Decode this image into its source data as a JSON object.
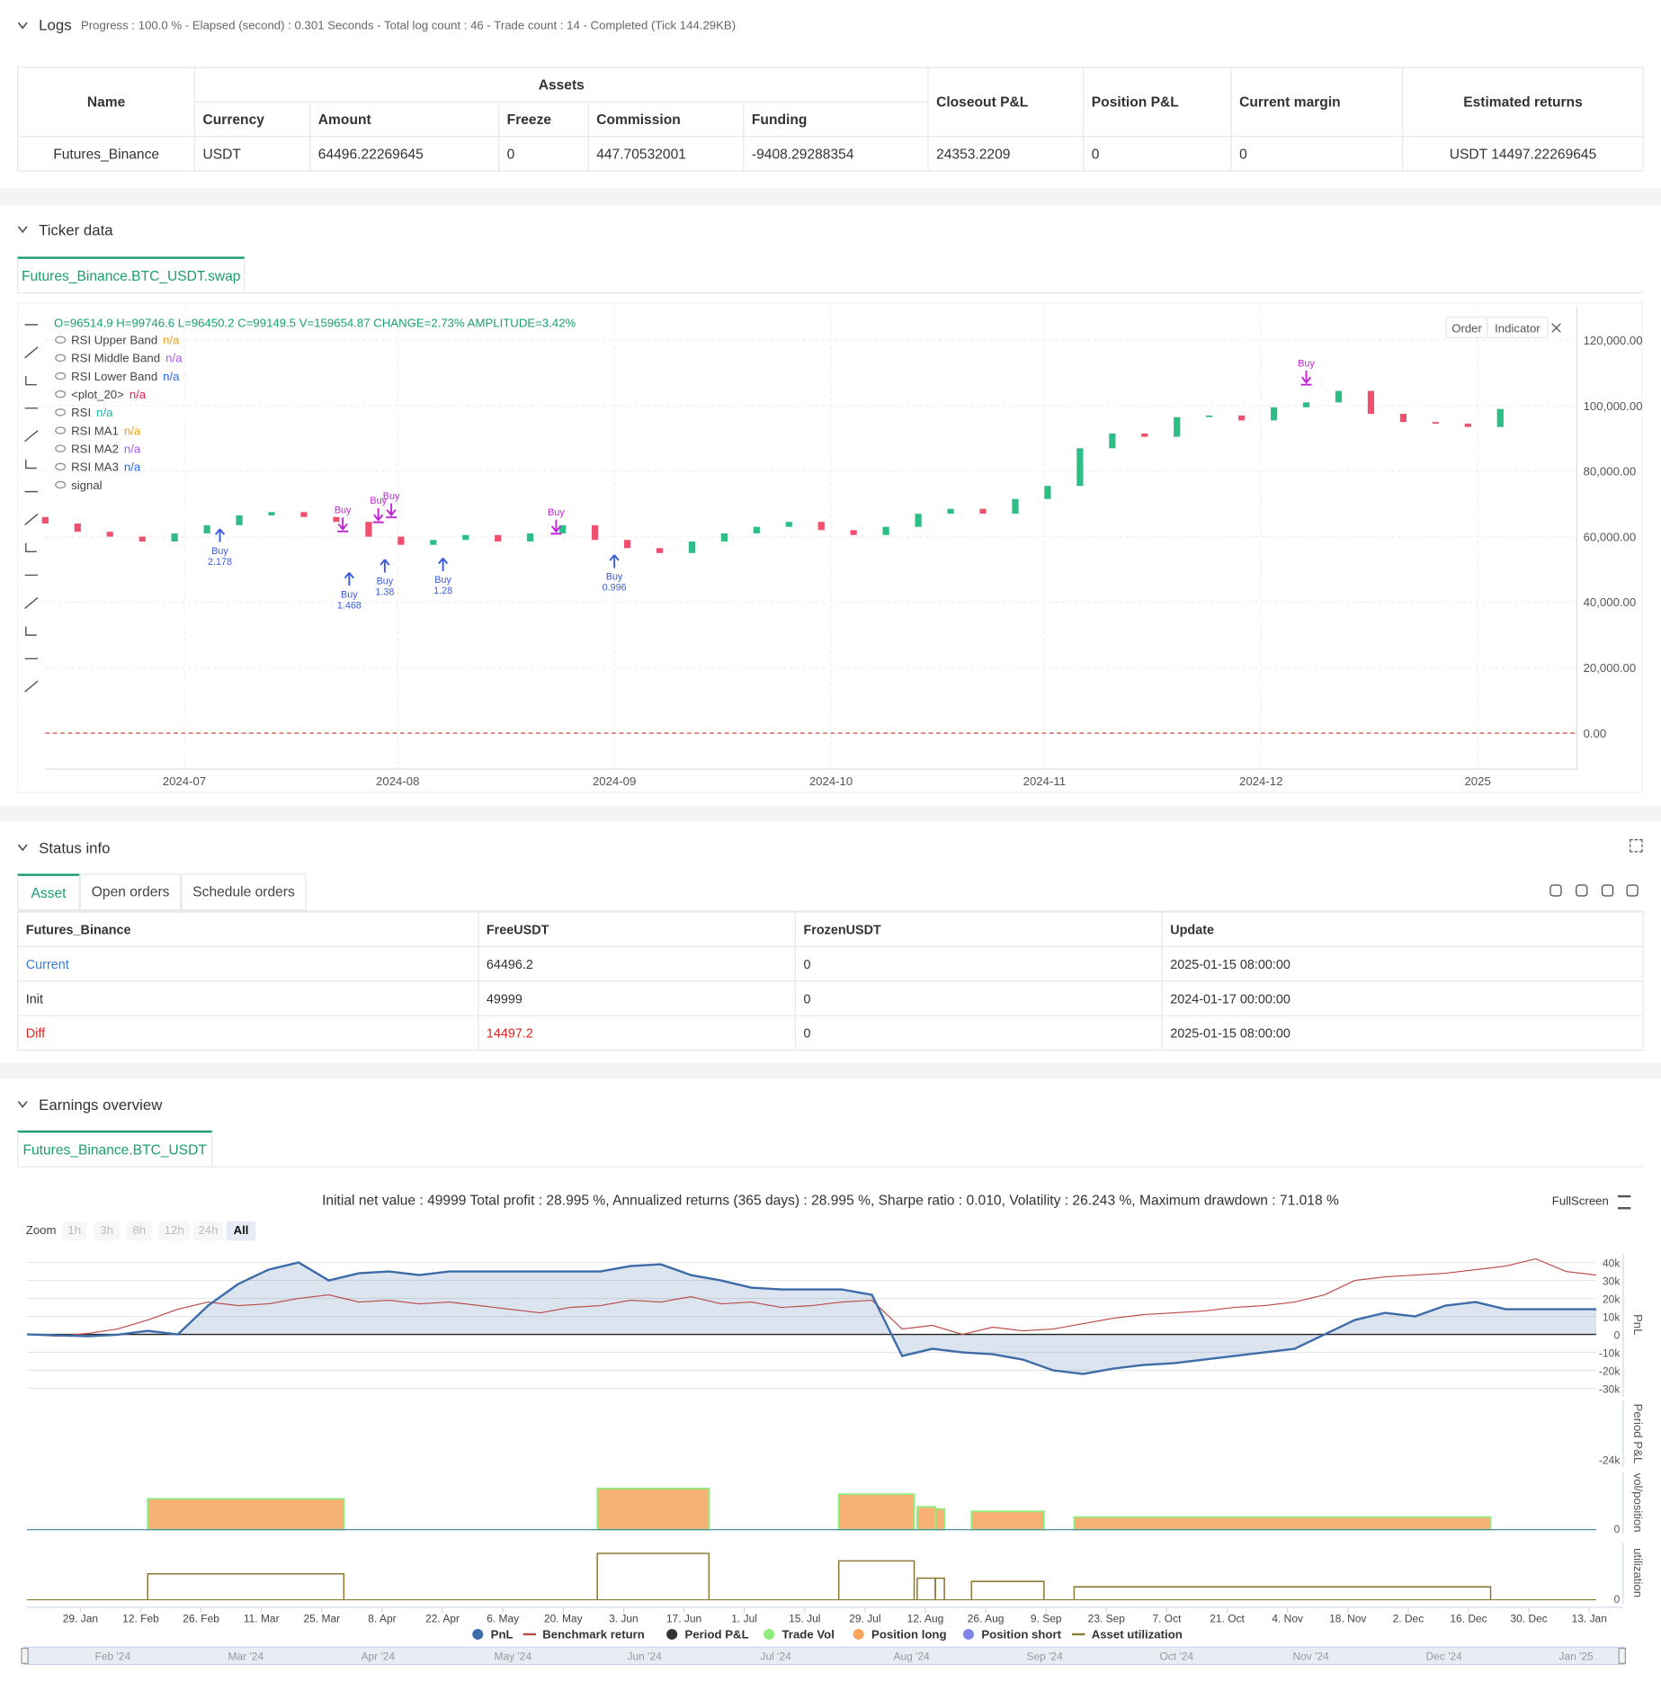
{
  "logs": {
    "title": "Logs",
    "summary": "Progress : 100.0 % - Elapsed (second) : 0.301 Seconds - Total log count : 46 - Trade count : 14 - Completed (Tick 144.29KB)",
    "table": {
      "name_header": "Name",
      "group_header": "Assets",
      "group_columns": [
        "Currency",
        "Amount",
        "Freeze",
        "Commission",
        "Funding"
      ],
      "headers": [
        "Closeout P&L",
        "Position P&L",
        "Current margin",
        "Estimated returns"
      ],
      "rows": [
        [
          "Futures_Binance",
          "USDT",
          "64496.22269645",
          "0",
          "447.70532001",
          "-9408.29288354",
          "24353.2209",
          "0",
          "0",
          "USDT 14497.22269645"
        ]
      ]
    }
  },
  "ticker": {
    "title": "Ticker data",
    "tab": "Futures_Binance.BTC_USDT.swap",
    "ohlc": "O=96514.9 H=99746.6 L=96450.2 C=99149.5 V=159654.87 CHANGE=2.73% AMPLITUDE=3.42%",
    "legend": [
      {
        "name": "RSI Upper Band",
        "value": "n/a",
        "color": "#f59e0b"
      },
      {
        "name": "RSI Middle Band",
        "value": "n/a",
        "color": "#a855f7"
      },
      {
        "name": "RSI Lower Band",
        "value": "n/a",
        "color": "#2563eb"
      },
      {
        "name": "<plot_20>",
        "value": "n/a",
        "color": "#e11d48"
      },
      {
        "name": "RSI",
        "value": "n/a",
        "color": "#14b8a6"
      },
      {
        "name": "RSI MA1",
        "value": "n/a",
        "color": "#f59e0b"
      },
      {
        "name": "RSI MA2",
        "value": "n/a",
        "color": "#a855f7"
      },
      {
        "name": "RSI MA3",
        "value": "n/a",
        "color": "#2563eb"
      },
      {
        "name": "signal"
      }
    ],
    "buttons": [
      "Order",
      "Indicator"
    ]
  },
  "status": {
    "title": "Status info",
    "tabs": [
      "Asset",
      "Open orders",
      "Schedule orders"
    ],
    "headers": [
      "Futures_Binance",
      "FreeUSDT",
      "FrozenUSDT",
      "Update"
    ],
    "rows": [
      [
        "Current",
        "64496.2",
        "0",
        "2025-01-15 08:00:00"
      ],
      [
        "Init",
        "49999",
        "0",
        "2024-01-17 00:00:00"
      ],
      [
        "Diff",
        "14497.2",
        "0",
        "2025-01-15 08:00:00"
      ]
    ]
  },
  "earnings": {
    "title": "Earnings overview",
    "tab": "Futures_Binance.BTC_USDT",
    "summary": "Initial net value : 49999 Total profit : 28.995 %, Annualized returns (365 days) : 28.995 %, Sharpe ratio : 0.010, Volatility : 26.243 %, Maximum drawdown : 71.018 %",
    "fullscreen": "FullScreen",
    "zoom_label": "Zoom",
    "zoom_buttons": [
      "1h",
      "3h",
      "8h",
      "12h",
      "24h",
      "All"
    ],
    "axis_titles": [
      "PnL",
      "Period P&L",
      "vol/position",
      "utilization"
    ],
    "navigator_labels": [
      "Feb '24",
      "Mar '24",
      "Apr '24",
      "May '24",
      "Jun '24",
      "Jul '24",
      "Aug '24",
      "Sep '24",
      "Oct '24",
      "Nov '24",
      "Dec '24",
      "Jan '25"
    ]
  },
  "chart_data": [
    {
      "type": "candlestick",
      "open": [
        66000,
        64000,
        61500,
        60000,
        58500,
        61000,
        63500,
        66500,
        67500,
        66000,
        64500,
        60000,
        57500,
        59000,
        60500,
        58500,
        61000,
        63500,
        59000,
        56500,
        55000,
        58500,
        61000,
        63000,
        64500,
        62000,
        60500,
        63000,
        67000,
        68500,
        67000,
        71500,
        75500,
        87000,
        91500,
        90500,
        96500,
        97000,
        95500,
        99500,
        101000,
        104500,
        97500,
        95000,
        94500,
        93500
      ],
      "close": [
        64000,
        61500,
        60000,
        58500,
        61000,
        63500,
        66500,
        67500,
        66000,
        64500,
        60000,
        57500,
        59000,
        60500,
        58500,
        61000,
        63500,
        59000,
        56500,
        55000,
        58500,
        61000,
        63000,
        64500,
        62000,
        60500,
        63000,
        67000,
        68500,
        67000,
        71500,
        75500,
        87000,
        91500,
        90500,
        96500,
        97000,
        95500,
        99500,
        101000,
        104500,
        97500,
        95000,
        94500,
        93500,
        99000
      ],
      "up_color": "#2dbd85",
      "down_color": "#f0506e",
      "xlim": [
        -0.3,
        47.3
      ],
      "xticks": [
        {
          "value": 4.3,
          "label": "2024-07"
        },
        {
          "value": 10.9,
          "label": "2024-08"
        },
        {
          "value": 17.6,
          "label": "2024-09"
        },
        {
          "value": 24.3,
          "label": "2024-10"
        },
        {
          "value": 30.9,
          "label": "2024-11"
        },
        {
          "value": 37.6,
          "label": "2024-12"
        },
        {
          "value": 44.3,
          "label": "2025"
        }
      ],
      "ylim": [
        -11000,
        130000
      ],
      "yticks": [
        {
          "value": 0,
          "label": "0.00"
        },
        {
          "value": 20000,
          "label": "20,000.00"
        },
        {
          "value": 40000,
          "label": "40,000.00"
        },
        {
          "value": 60000,
          "label": "60,000.00"
        },
        {
          "value": 80000,
          "label": "80,000.00"
        },
        {
          "value": 100000,
          "label": "100,000.00"
        },
        {
          "value": 120000,
          "label": "120,000.00"
        }
      ],
      "grid": true,
      "annotations": [
        {
          "text": "Buy",
          "detail": "2.178",
          "x": 5.4,
          "y": 62300,
          "side": "below",
          "color": "#3b5bdb"
        },
        {
          "text": "Buy",
          "detail": "1.468",
          "x": 9.4,
          "y": 49000,
          "side": "below",
          "color": "#3b5bdb"
        },
        {
          "text": "Buy",
          "detail": "1.38",
          "x": 10.5,
          "y": 53000,
          "side": "below",
          "color": "#3b5bdb"
        },
        {
          "text": "Buy",
          "detail": "1.28",
          "x": 12.3,
          "y": 53400,
          "side": "below",
          "color": "#3b5bdb"
        },
        {
          "text": "Buy",
          "detail": "0.996",
          "x": 17.6,
          "y": 54400,
          "side": "below",
          "color": "#3b5bdb"
        },
        {
          "text": "Buy",
          "x": 9.2,
          "y": 67200,
          "side": "above",
          "color": "#c026d3"
        },
        {
          "text": "Buy",
          "x": 10.3,
          "y": 70000,
          "side": "above",
          "color": "#c026d3"
        },
        {
          "text": "Buy",
          "x": 10.7,
          "y": 71500,
          "side": "above",
          "color": "#c026d3"
        },
        {
          "text": "Buy",
          "x": 15.8,
          "y": 66500,
          "side": "above",
          "color": "#c026d3"
        },
        {
          "text": "Buy",
          "x": 39.0,
          "y": 112000,
          "side": "above",
          "color": "#c026d3"
        }
      ]
    },
    {
      "type": "line",
      "xlim": [
        0,
        52
      ],
      "xticks": [
        {
          "value": 1.77,
          "label": "29. Jan"
        },
        {
          "value": 3.77,
          "label": "12. Feb"
        },
        {
          "value": 5.77,
          "label": "26. Feb"
        },
        {
          "value": 7.77,
          "label": "11. Mar"
        },
        {
          "value": 9.77,
          "label": "25. Mar"
        },
        {
          "value": 11.77,
          "label": "8. Apr"
        },
        {
          "value": 13.77,
          "label": "22. Apr"
        },
        {
          "value": 15.77,
          "label": "6. May"
        },
        {
          "value": 17.77,
          "label": "20. May"
        },
        {
          "value": 19.77,
          "label": "3. Jun"
        },
        {
          "value": 21.77,
          "label": "17. Jun"
        },
        {
          "value": 23.77,
          "label": "1. Jul"
        },
        {
          "value": 25.77,
          "label": "15. Jul"
        },
        {
          "value": 27.77,
          "label": "29. Jul"
        },
        {
          "value": 29.77,
          "label": "12. Aug"
        },
        {
          "value": 31.77,
          "label": "26. Aug"
        },
        {
          "value": 33.77,
          "label": "9. Sep"
        },
        {
          "value": 35.77,
          "label": "23. Sep"
        },
        {
          "value": 37.77,
          "label": "7. Oct"
        },
        {
          "value": 39.77,
          "label": "21. Oct"
        },
        {
          "value": 41.77,
          "label": "4. Nov"
        },
        {
          "value": 43.77,
          "label": "18. Nov"
        },
        {
          "value": 45.77,
          "label": "2. Dec"
        },
        {
          "value": 47.77,
          "label": "16. Dec"
        },
        {
          "value": 49.77,
          "label": "30. Dec"
        },
        {
          "value": 51.77,
          "label": "13. Jan"
        }
      ],
      "ylim": [
        -33000,
        45000
      ],
      "yticks": [
        {
          "value": 40000,
          "label": "40k"
        },
        {
          "value": 30000,
          "label": "30k"
        },
        {
          "value": 20000,
          "label": "20k"
        },
        {
          "value": 10000,
          "label": "10k"
        },
        0,
        {
          "value": -10000,
          "label": "-10k"
        },
        {
          "value": -20000,
          "label": "-20k"
        },
        {
          "value": -30000,
          "label": "-30k"
        }
      ],
      "series": [
        {
          "name": "PnL",
          "color": "#3d6ca8",
          "values": [
            0,
            -500,
            -1000,
            -200,
            2000,
            0,
            16000,
            28000,
            36000,
            40000,
            30000,
            34000,
            35000,
            33000,
            35000,
            35000,
            35000,
            35000,
            35000,
            35000,
            38000,
            39000,
            33000,
            30000,
            26000,
            25000,
            25000,
            25000,
            22000,
            -12000,
            -8000,
            -10000,
            -11000,
            -14000,
            -20000,
            -22000,
            -19000,
            -17000,
            -16000,
            -14000,
            -12000,
            -10000,
            -8000,
            0,
            8000,
            12000,
            10000,
            16000,
            18000,
            14000,
            14000,
            14000,
            14000
          ]
        },
        {
          "name": "Benchmark return",
          "color": "#b94a48",
          "values": [
            0,
            -1000,
            500,
            3000,
            8000,
            14000,
            18000,
            16000,
            17000,
            20000,
            22000,
            18000,
            19000,
            17000,
            18000,
            16000,
            14000,
            12000,
            15000,
            16000,
            19000,
            18000,
            21000,
            17000,
            18000,
            15000,
            16000,
            18000,
            19000,
            3000,
            5000,
            0,
            4000,
            2000,
            3000,
            6000,
            9000,
            11000,
            12000,
            13000,
            15000,
            16000,
            18000,
            22000,
            30000,
            32000,
            33000,
            34000,
            36000,
            38000,
            42000,
            35000,
            33000
          ]
        }
      ],
      "legend_extra": [
        {
          "name": "Period P&L",
          "color": "#333333"
        },
        {
          "name": "Trade Vol",
          "color": "#90ed7d"
        },
        {
          "name": "Position long",
          "color": "#f7a35c"
        },
        {
          "name": "Position short",
          "color": "#8085e9"
        },
        {
          "name": "Asset utilization",
          "color": "#8d7b3a"
        }
      ],
      "period_pnl_ylim": [
        -31000,
        33000
      ],
      "period_pnl_yticks": [
        {
          "value": -24000,
          "label": "-24k"
        }
      ],
      "position_ylim": [
        0,
        50
      ],
      "position_yticks": [
        0
      ],
      "position_blocks": [
        {
          "start": 4.0,
          "end": 10.5,
          "value": 27
        },
        {
          "start": 18.9,
          "end": 22.6,
          "value": 36
        },
        {
          "start": 26.9,
          "end": 29.4,
          "value": 31
        },
        {
          "start": 29.5,
          "end": 30.1,
          "value": 20
        },
        {
          "start": 30.1,
          "end": 30.4,
          "value": 18
        },
        {
          "start": 31.3,
          "end": 33.7,
          "value": 16
        },
        {
          "start": 34.7,
          "end": 48.5,
          "value": 11
        }
      ],
      "utilization_ylim": [
        0,
        50
      ],
      "utilization_yticks": [
        0
      ],
      "utilization_blocks": [
        {
          "start": 4.0,
          "end": 10.5,
          "value": 24
        },
        {
          "start": 18.9,
          "end": 22.6,
          "value": 43
        },
        {
          "start": 26.9,
          "end": 29.4,
          "value": 36
        },
        {
          "start": 29.5,
          "end": 30.1,
          "value": 20
        },
        {
          "start": 30.1,
          "end": 30.4,
          "value": 20
        },
        {
          "start": 31.3,
          "end": 33.7,
          "value": 17
        },
        {
          "start": 34.7,
          "end": 48.5,
          "value": 12
        }
      ]
    }
  ]
}
